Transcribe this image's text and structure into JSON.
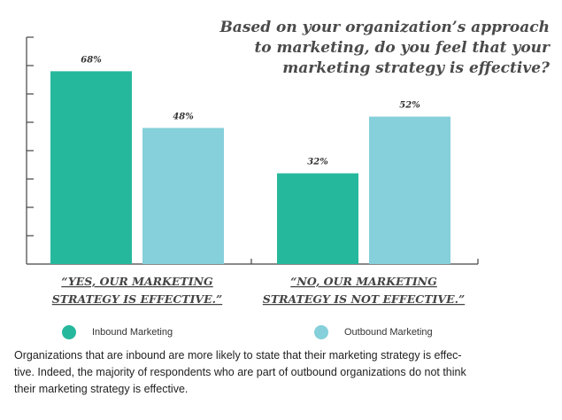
{
  "title_lines": [
    "Based on your organization’s approach",
    "to marketing, do you feel that your",
    "marketing strategy is effective?"
  ],
  "chart_data": {
    "type": "bar",
    "title": "Based on your organization’s approach to marketing, do you feel that your marketing strategy is effective?",
    "category_lines": [
      [
        "“YES, OUR MARKETING",
        "STRATEGY IS EFFECTIVE.”"
      ],
      [
        "“NO, OUR MARKETING",
        "STRATEGY IS NOT EFFECTIVE.”"
      ]
    ],
    "categories": [
      "“YES, OUR MARKETING STRATEGY IS EFFECTIVE.”",
      "“NO, OUR MARKETING STRATEGY IS NOT EFFECTIVE.”"
    ],
    "series": [
      {
        "name": "Inbound Marketing",
        "values": [
          68,
          32
        ],
        "labels": [
          "68%",
          "32%"
        ],
        "color": "#26b89c"
      },
      {
        "name": "Outbound Marketing",
        "values": [
          48,
          52
        ],
        "labels": [
          "48%",
          "52%"
        ],
        "color": "#85d0da"
      }
    ],
    "ylim": [
      0,
      80
    ],
    "unit": "%",
    "legend_position": "bottom",
    "grid": false,
    "axis_color": "#444444"
  },
  "caption_lines": [
    "Organizations that are inbound are more likely to state that their marketing strategy is effec-",
    "tive. Indeed, the majority of respondents who are part of outbound organizations do not think",
    "their marketing strategy is effective."
  ]
}
